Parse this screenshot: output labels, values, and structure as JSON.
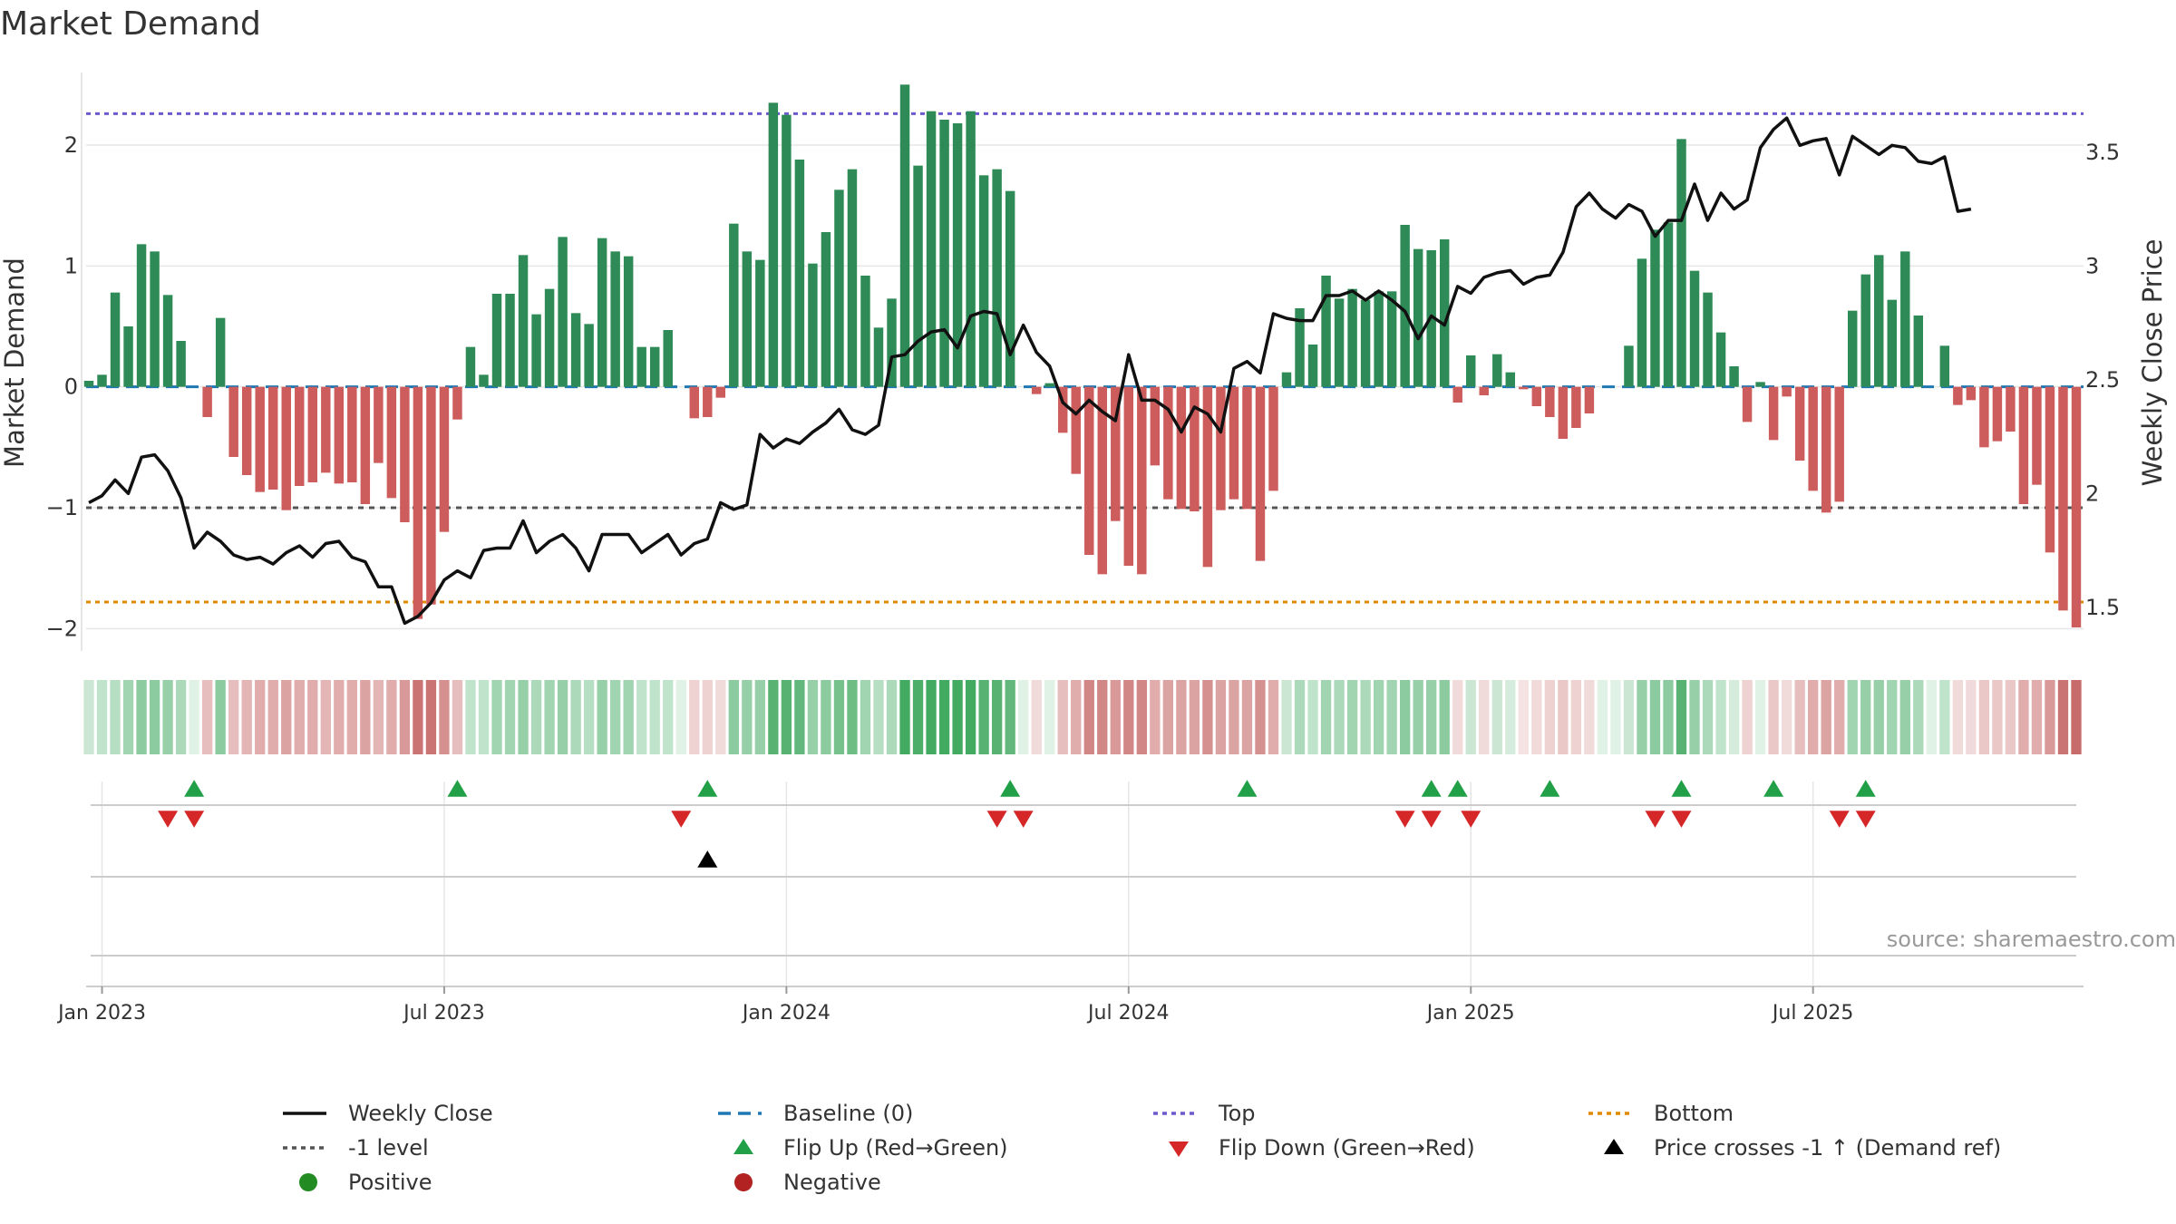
{
  "title": "Market Demand",
  "source": "source: sharemaestro.com",
  "colors": {
    "positive": "#2e8b57",
    "negative": "#cd5c5c",
    "close": "#111111",
    "baseline": "#1f77b4",
    "top": "#6a5acd",
    "bottom": "#e08a00",
    "minus1": "#555555",
    "flip_up": "#22a047",
    "flip_down": "#d62728",
    "cross": "#000000",
    "grid": "#e6e6e6"
  },
  "chart_data": {
    "type": "bar+line",
    "ylabel_left": "Market Demand",
    "ylabel_right": "Weekly Close Price",
    "y_left_range": [
      -2.2,
      2.6
    ],
    "y_left_ticks": [
      "2",
      "1",
      "0",
      "−1",
      "−2"
    ],
    "y_right_range": [
      1.3,
      3.85
    ],
    "y_right_ticks": [
      "3.5",
      "3",
      "2.5",
      "2",
      "1.5"
    ],
    "x_tick_labels": [
      "Jan 2023",
      "Jul 2023",
      "Jan 2024",
      "Jul 2024",
      "Jan 2025",
      "Jul 2025"
    ],
    "x_tick_weeks": [
      1,
      27,
      53,
      79,
      105,
      131
    ],
    "reference_lines": {
      "baseline": 0,
      "top": 2.26,
      "bottom": -1.78,
      "minus1": -1
    },
    "demand": [
      0.05,
      0.1,
      0.78,
      0.5,
      1.18,
      1.12,
      0.76,
      0.38,
      0,
      -0.25,
      0.57,
      -0.58,
      -0.73,
      -0.87,
      -0.85,
      -1.02,
      -0.82,
      -0.79,
      -0.71,
      -0.8,
      -0.79,
      -0.97,
      -0.63,
      -0.92,
      -1.12,
      -1.92,
      -1.8,
      -1.2,
      -0.27,
      0.33,
      0.1,
      0.77,
      0.77,
      1.09,
      0.6,
      0.81,
      1.24,
      0.61,
      0.52,
      1.23,
      1.12,
      1.08,
      0.33,
      0.33,
      0.47,
      0,
      -0.26,
      -0.25,
      -0.09,
      1.35,
      1.12,
      1.05,
      2.35,
      2.25,
      1.88,
      1.02,
      1.28,
      1.63,
      1.8,
      0.92,
      0.49,
      0.73,
      2.5,
      1.83,
      2.28,
      2.21,
      2.18,
      2.28,
      1.75,
      1.8,
      1.62,
      0,
      -0.06,
      0.03,
      -0.38,
      -0.72,
      -1.39,
      -1.55,
      -1.11,
      -1.48,
      -1.55,
      -0.65,
      -0.93,
      -1.01,
      -1.03,
      -1.49,
      -1.02,
      -0.93,
      -1.01,
      -1.44,
      -0.86,
      0.12,
      0.65,
      0.35,
      0.92,
      0.73,
      0.81,
      0.72,
      0.79,
      0.79,
      1.34,
      1.14,
      1.13,
      1.22,
      -0.13,
      0.26,
      -0.07,
      0.27,
      0.12,
      -0.02,
      -0.16,
      -0.25,
      -0.43,
      -0.34,
      -0.22,
      0,
      0,
      0.34,
      1.06,
      1.3,
      1.36,
      2.05,
      0.96,
      0.78,
      0.45,
      0.17,
      -0.29,
      0.04,
      -0.44,
      -0.08,
      -0.61,
      -0.86,
      -1.04,
      -0.95,
      0.63,
      0.93,
      1.09,
      0.72,
      1.12,
      0.59,
      0,
      0.34,
      -0.15,
      -0.11,
      -0.5,
      -0.45,
      -0.37,
      -0.97,
      -0.81,
      -1.37,
      -1.85,
      -1.99
    ],
    "close": [
      1.96,
      1.99,
      2.06,
      2.0,
      2.16,
      2.17,
      2.1,
      1.98,
      1.76,
      1.83,
      1.79,
      1.73,
      1.71,
      1.72,
      1.69,
      1.74,
      1.77,
      1.72,
      1.78,
      1.79,
      1.72,
      1.7,
      1.59,
      1.59,
      1.43,
      1.46,
      1.52,
      1.62,
      1.66,
      1.63,
      1.75,
      1.76,
      1.76,
      1.88,
      1.74,
      1.79,
      1.82,
      1.76,
      1.66,
      1.82,
      1.82,
      1.82,
      1.74,
      1.78,
      1.82,
      1.73,
      1.78,
      1.8,
      1.96,
      1.93,
      1.95,
      2.26,
      2.2,
      2.24,
      2.22,
      2.27,
      2.31,
      2.37,
      2.28,
      2.26,
      2.3,
      2.6,
      2.61,
      2.67,
      2.71,
      2.72,
      2.64,
      2.78,
      2.8,
      2.79,
      2.61,
      2.74,
      2.62,
      2.56,
      2.4,
      2.35,
      2.41,
      2.36,
      2.32,
      2.61,
      2.41,
      2.41,
      2.37,
      2.27,
      2.38,
      2.35,
      2.27,
      2.55,
      2.58,
      2.53,
      2.79,
      2.77,
      2.76,
      2.76,
      2.87,
      2.87,
      2.89,
      2.85,
      2.89,
      2.85,
      2.8,
      2.68,
      2.78,
      2.74,
      2.91,
      2.88,
      2.95,
      2.97,
      2.98,
      2.92,
      2.95,
      2.96,
      3.06,
      3.26,
      3.32,
      3.25,
      3.21,
      3.27,
      3.24,
      3.13,
      3.2,
      3.2,
      3.36,
      3.2,
      3.32,
      3.25,
      3.29,
      3.52,
      3.6,
      3.65,
      3.53,
      3.55,
      3.56,
      3.4,
      3.57,
      3.53,
      3.49,
      3.53,
      3.52,
      3.46,
      3.45,
      3.48,
      3.24,
      3.25
    ],
    "strip_intensity": [
      0.25,
      0.3,
      0.35,
      0.45,
      0.55,
      0.55,
      0.5,
      0.4,
      0.15,
      0.35,
      0.55,
      0.35,
      0.4,
      0.45,
      0.45,
      0.5,
      0.45,
      0.45,
      0.4,
      0.45,
      0.45,
      0.5,
      0.4,
      0.45,
      0.55,
      0.75,
      0.75,
      0.6,
      0.35,
      0.3,
      0.3,
      0.45,
      0.45,
      0.5,
      0.4,
      0.45,
      0.5,
      0.4,
      0.35,
      0.5,
      0.45,
      0.45,
      0.3,
      0.3,
      0.3,
      0.15,
      0.25,
      0.25,
      0.2,
      0.55,
      0.5,
      0.5,
      0.8,
      0.8,
      0.75,
      0.5,
      0.55,
      0.65,
      0.7,
      0.45,
      0.35,
      0.4,
      0.9,
      0.85,
      0.9,
      0.9,
      0.9,
      0.9,
      0.8,
      0.8,
      0.75,
      0.15,
      0.2,
      0.15,
      0.35,
      0.45,
      0.65,
      0.65,
      0.55,
      0.65,
      0.65,
      0.45,
      0.5,
      0.5,
      0.5,
      0.6,
      0.5,
      0.5,
      0.5,
      0.6,
      0.45,
      0.25,
      0.4,
      0.3,
      0.45,
      0.4,
      0.45,
      0.4,
      0.45,
      0.45,
      0.55,
      0.5,
      0.5,
      0.55,
      0.2,
      0.25,
      0.2,
      0.25,
      0.2,
      0.15,
      0.2,
      0.25,
      0.3,
      0.25,
      0.2,
      0.15,
      0.15,
      0.25,
      0.5,
      0.55,
      0.55,
      0.8,
      0.5,
      0.4,
      0.3,
      0.2,
      0.25,
      0.15,
      0.3,
      0.2,
      0.35,
      0.45,
      0.5,
      0.45,
      0.45,
      0.5,
      0.5,
      0.45,
      0.5,
      0.4,
      0.15,
      0.3,
      0.2,
      0.2,
      0.3,
      0.3,
      0.3,
      0.45,
      0.45,
      0.55,
      0.75,
      0.8
    ],
    "flip_up_weeks": [
      8,
      28,
      47,
      70,
      88,
      102,
      104,
      111,
      121,
      128,
      135
    ],
    "flip_down_weeks": [
      6,
      8,
      45,
      69,
      71,
      100,
      102,
      105,
      119,
      121,
      133,
      135
    ],
    "price_cross_weeks": [
      47
    ]
  },
  "legend": [
    {
      "label": "Weekly Close",
      "symbol": "line-solid",
      "color": "#111111"
    },
    {
      "label": "Baseline (0)",
      "symbol": "line-dash",
      "color": "#1f77b4"
    },
    {
      "label": "Top",
      "symbol": "line-dot",
      "color": "#6a5acd"
    },
    {
      "label": "Bottom",
      "symbol": "line-dot",
      "color": "#e08a00"
    },
    {
      "label": "-1 level",
      "symbol": "line-dot",
      "color": "#555555"
    },
    {
      "label": "Flip Up (Red→Green)",
      "symbol": "tri-up",
      "color": "#22a047"
    },
    {
      "label": "Flip Down (Green→Red)",
      "symbol": "tri-down",
      "color": "#d62728"
    },
    {
      "label": "Price crosses -1 ↑ (Demand ref)",
      "symbol": "tri-up",
      "color": "#000000"
    },
    {
      "label": "Positive",
      "symbol": "dot",
      "color": "#228b22"
    },
    {
      "label": "Negative",
      "symbol": "dot",
      "color": "#b22222"
    }
  ]
}
